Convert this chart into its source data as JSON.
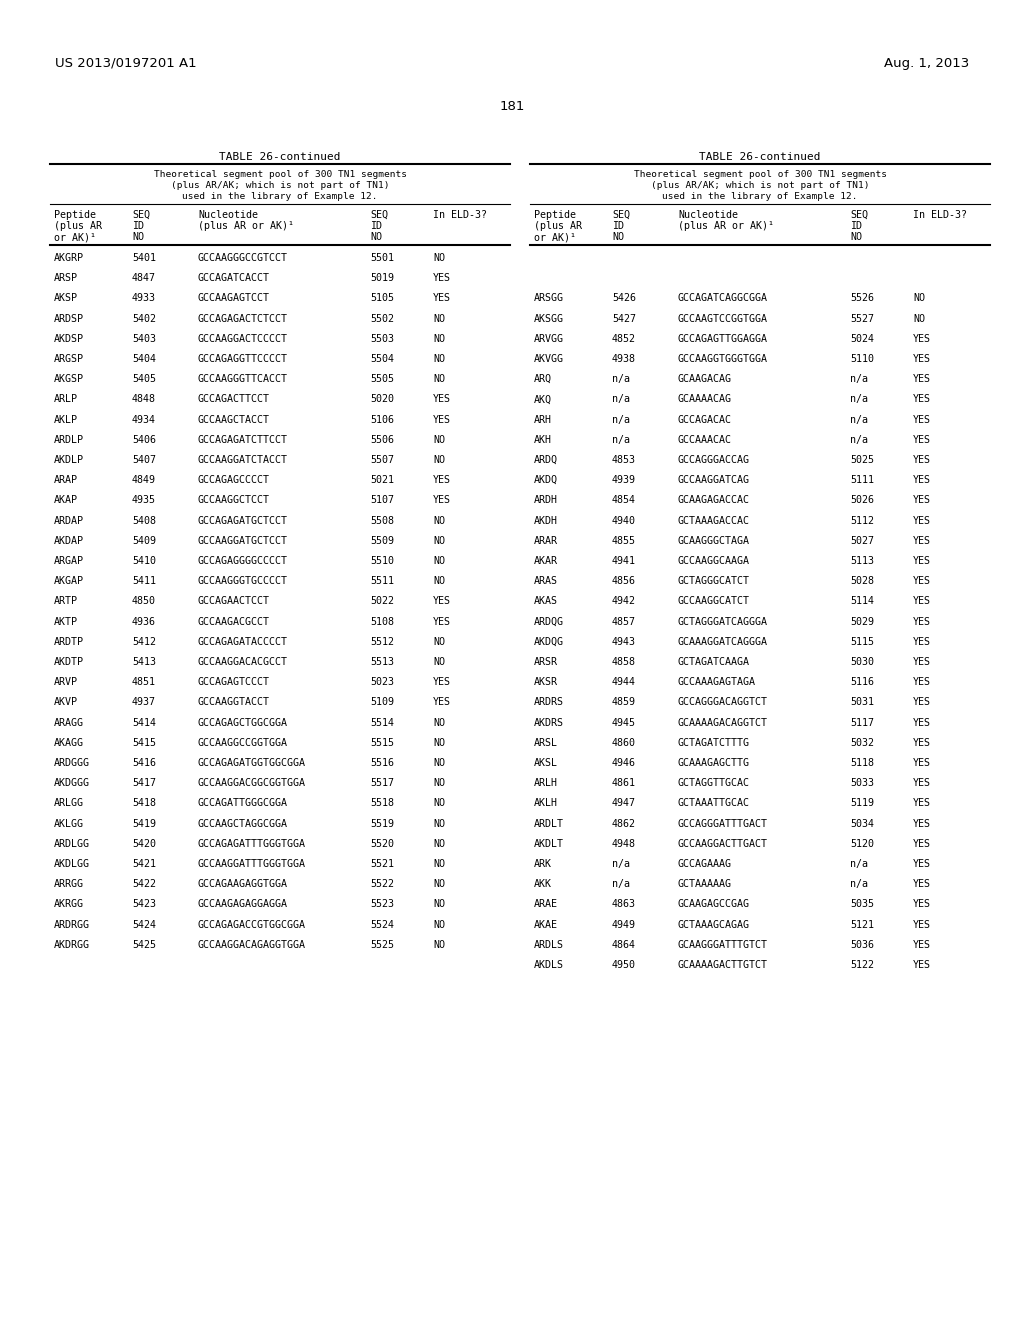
{
  "page_left": "US 2013/0197201 A1",
  "page_right": "Aug. 1, 2013",
  "page_number": "181",
  "table_title": "TABLE 26-continued",
  "table_subtitle_lines": [
    "Theoretical segment pool of 300 TN1 segments",
    "(plus AR/AK; which is not part of TN1)",
    "used in the library of Example 12."
  ],
  "col_hdr_lines": [
    [
      "Peptide",
      "(plus AR",
      "or AK)¹"
    ],
    [
      "SEQ",
      "ID",
      "NO"
    ],
    [
      "Nucleotide",
      "(plus AR or AK)¹",
      ""
    ],
    [
      "SEQ",
      "ID",
      "NO"
    ],
    [
      "In ELD-3?",
      "",
      ""
    ]
  ],
  "left_table": [
    [
      "AKGRP",
      "5401",
      "GCCAAGGGCCGTCCT",
      "5501",
      "NO"
    ],
    [
      "ARSP",
      "4847",
      "GCCAGATCACCT",
      "5019",
      "YES"
    ],
    [
      "AKSP",
      "4933",
      "GCCAAGAGTCCT",
      "5105",
      "YES"
    ],
    [
      "ARDSP",
      "5402",
      "GCCAGAGACTCTCCT",
      "5502",
      "NO"
    ],
    [
      "AKDSP",
      "5403",
      "GCCAAGGACTCCCCT",
      "5503",
      "NO"
    ],
    [
      "ARGSP",
      "5404",
      "GCCAGAGGTTCCCCT",
      "5504",
      "NO"
    ],
    [
      "AKGSP",
      "5405",
      "GCCAAGGGTTCACCT",
      "5505",
      "NO"
    ],
    [
      "ARLP",
      "4848",
      "GCCAGACTTCCT",
      "5020",
      "YES"
    ],
    [
      "AKLP",
      "4934",
      "GCCAAGCTACCT",
      "5106",
      "YES"
    ],
    [
      "ARDLP",
      "5406",
      "GCCAGAGATCTTCCT",
      "5506",
      "NO"
    ],
    [
      "AKDLP",
      "5407",
      "GCCAAGGATCTACCT",
      "5507",
      "NO"
    ],
    [
      "ARAP",
      "4849",
      "GCCAGAGCCCCT",
      "5021",
      "YES"
    ],
    [
      "AKAP",
      "4935",
      "GCCAAGGCTCCT",
      "5107",
      "YES"
    ],
    [
      "ARDAP",
      "5408",
      "GCCAGAGATGCTCCT",
      "5508",
      "NO"
    ],
    [
      "AKDAP",
      "5409",
      "GCCAAGGATGCTCCT",
      "5509",
      "NO"
    ],
    [
      "ARGAP",
      "5410",
      "GCCAGAGGGGCCCCT",
      "5510",
      "NO"
    ],
    [
      "AKGAP",
      "5411",
      "GCCAAGGGTGCCCCT",
      "5511",
      "NO"
    ],
    [
      "ARTP",
      "4850",
      "GCCAGAACTCCT",
      "5022",
      "YES"
    ],
    [
      "AKTP",
      "4936",
      "GCCAAGACGCCT",
      "5108",
      "YES"
    ],
    [
      "ARDTP",
      "5412",
      "GCCAGAGATACCCCT",
      "5512",
      "NO"
    ],
    [
      "AKDTP",
      "5413",
      "GCCAAGGACACGCCT",
      "5513",
      "NO"
    ],
    [
      "ARVP",
      "4851",
      "GCCAGAGTCCCT",
      "5023",
      "YES"
    ],
    [
      "AKVP",
      "4937",
      "GCCAAGGTACCT",
      "5109",
      "YES"
    ],
    [
      "ARAGG",
      "5414",
      "GCCAGAGCTGGCGGA",
      "5514",
      "NO"
    ],
    [
      "AKAGG",
      "5415",
      "GCCAAGGCCGGTGGA",
      "5515",
      "NO"
    ],
    [
      "ARDGGG",
      "5416",
      "GCCAGAGATGGTGGCGGA",
      "5516",
      "NO"
    ],
    [
      "AKDGGG",
      "5417",
      "GCCAAGGACGGCGGTGGA",
      "5517",
      "NO"
    ],
    [
      "ARLGG",
      "5418",
      "GCCAGATTGGGCGGA",
      "5518",
      "NO"
    ],
    [
      "AKLGG",
      "5419",
      "GCCAAGCTAGGCGGA",
      "5519",
      "NO"
    ],
    [
      "ARDLGG",
      "5420",
      "GCCAGAGATTTGGGTGGA",
      "5520",
      "NO"
    ],
    [
      "AKDLGG",
      "5421",
      "GCCAAGGATTTGGGTGGA",
      "5521",
      "NO"
    ],
    [
      "ARRGG",
      "5422",
      "GCCAGAAGAGGTGGA",
      "5522",
      "NO"
    ],
    [
      "AKRGG",
      "5423",
      "GCCAAGAGAGGAGGA",
      "5523",
      "NO"
    ],
    [
      "ARDRGG",
      "5424",
      "GCCAGAGACCGTGGCGGA",
      "5524",
      "NO"
    ],
    [
      "AKDRGG",
      "5425",
      "GCCAAGGACAGAGGTGGA",
      "5525",
      "NO"
    ]
  ],
  "right_table": [
    [
      "",
      "",
      "",
      "",
      ""
    ],
    [
      "ARSGG",
      "5426",
      "GCCAGATCAGGCGGA",
      "5526",
      "NO"
    ],
    [
      "AKSGG",
      "5427",
      "GCCAAGTCCGGTGGA",
      "5527",
      "NO"
    ],
    [
      "ARVGG",
      "4852",
      "GCCAGAGTTGGAGGA",
      "5024",
      "YES"
    ],
    [
      "AKVGG",
      "4938",
      "GCCAAGGTGGGTGGA",
      "5110",
      "YES"
    ],
    [
      "ARQ",
      "n/a",
      "GCAAGACAG",
      "n/a",
      "YES"
    ],
    [
      "AKQ",
      "n/a",
      "GCAAAACAG",
      "n/a",
      "YES"
    ],
    [
      "ARH",
      "n/a",
      "GCCAGACAC",
      "n/a",
      "YES"
    ],
    [
      "AKH",
      "n/a",
      "GCCAAACAC",
      "n/a",
      "YES"
    ],
    [
      "ARDQ",
      "4853",
      "GCCAGGGACCAG",
      "5025",
      "YES"
    ],
    [
      "AKDQ",
      "4939",
      "GCCAAGGATCAG",
      "5111",
      "YES"
    ],
    [
      "ARDH",
      "4854",
      "GCAAGAGACCAC",
      "5026",
      "YES"
    ],
    [
      "AKDH",
      "4940",
      "GCTAAAGACCAC",
      "5112",
      "YES"
    ],
    [
      "ARAR",
      "4855",
      "GCAAGGGCTAGA",
      "5027",
      "YES"
    ],
    [
      "AKAR",
      "4941",
      "GCCAAGGCAAGA",
      "5113",
      "YES"
    ],
    [
      "ARAS",
      "4856",
      "GCTAGGGCATCT",
      "5028",
      "YES"
    ],
    [
      "AKAS",
      "4942",
      "GCCAAGGCATCT",
      "5114",
      "YES"
    ],
    [
      "ARDQG",
      "4857",
      "GCTAGGGATCAGGGA",
      "5029",
      "YES"
    ],
    [
      "AKDQG",
      "4943",
      "GCAAAGGATCAGGGA",
      "5115",
      "YES"
    ],
    [
      "ARSR",
      "4858",
      "GCTAGATCAAGA",
      "5030",
      "YES"
    ],
    [
      "AKSR",
      "4944",
      "GCCAAAGAGTAGA",
      "5116",
      "YES"
    ],
    [
      "ARDRS",
      "4859",
      "GCCAGGGACAGGTCT",
      "5031",
      "YES"
    ],
    [
      "AKDRS",
      "4945",
      "GCAAAAGACAGGTCT",
      "5117",
      "YES"
    ],
    [
      "ARSL",
      "4860",
      "GCTAGATCTTTG",
      "5032",
      "YES"
    ],
    [
      "AKSL",
      "4946",
      "GCAAAGAGCTTG",
      "5118",
      "YES"
    ],
    [
      "ARLH",
      "4861",
      "GCTAGGTTGCAC",
      "5033",
      "YES"
    ],
    [
      "AKLH",
      "4947",
      "GCTAAATTGCAC",
      "5119",
      "YES"
    ],
    [
      "ARDLT",
      "4862",
      "GCCAGGGATTTGACT",
      "5034",
      "YES"
    ],
    [
      "AKDLT",
      "4948",
      "GCCAAGGACTTGACT",
      "5120",
      "YES"
    ],
    [
      "ARK",
      "n/a",
      "GCCAGAAAG",
      "n/a",
      "YES"
    ],
    [
      "AKK",
      "n/a",
      "GCTAAAAAG",
      "n/a",
      "YES"
    ],
    [
      "ARAE",
      "4863",
      "GCAAGAGCCGAG",
      "5035",
      "YES"
    ],
    [
      "AKAE",
      "4949",
      "GCTAAAGCAGAG",
      "5121",
      "YES"
    ],
    [
      "ARDLS",
      "4864",
      "GCAAGGGATTTGTCT",
      "5036",
      "YES"
    ],
    [
      "AKDLS",
      "4950",
      "GCAAAAGACTTGTCT",
      "5122",
      "YES"
    ]
  ],
  "bg_color": "#ffffff",
  "text_color": "#000000",
  "fs_body": 7.2,
  "fs_subtitle": 6.8,
  "fs_title": 8.0,
  "fs_page": 9.5,
  "fs_pagenum": 9.5
}
